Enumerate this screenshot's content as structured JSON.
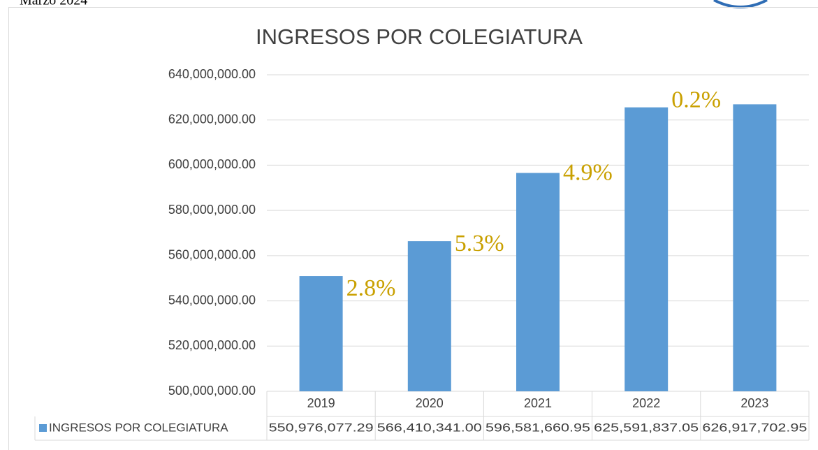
{
  "header": {
    "date": "Marzo 2024"
  },
  "chart_data": {
    "type": "bar",
    "title": "INGRESOS POR COLEGIATURA",
    "categories": [
      "2019",
      "2020",
      "2021",
      "2022",
      "2023"
    ],
    "series": [
      {
        "name": "INGRESOS POR COLEGIATURA",
        "color": "#5b9bd5",
        "values": [
          550976077.29,
          566410341.0,
          596581660.95,
          625591837.05,
          626917702.95
        ],
        "value_labels": [
          "550,976,077.29",
          "566,410,341.00",
          "596,581,660.95",
          "625,591,837.05",
          "626,917,702.95"
        ]
      }
    ],
    "ylim": [
      500000000,
      640000000
    ],
    "yticks": [
      {
        "value": 500000000,
        "label": "500,000,000.00"
      },
      {
        "value": 520000000,
        "label": "520,000,000.00"
      },
      {
        "value": 540000000,
        "label": "540,000,000.00"
      },
      {
        "value": 560000000,
        "label": "560,000,000.00"
      },
      {
        "value": 580000000,
        "label": "580,000,000.00"
      },
      {
        "value": 600000000,
        "label": "600,000,000.00"
      },
      {
        "value": 620000000,
        "label": "620,000,000.00"
      },
      {
        "value": 640000000,
        "label": "640,000,000.00"
      }
    ],
    "grid": true,
    "annotations": [
      "2.8%",
      "5.3%",
      "4.9%",
      "0.2%"
    ],
    "annotation_color": "#c9a000"
  }
}
